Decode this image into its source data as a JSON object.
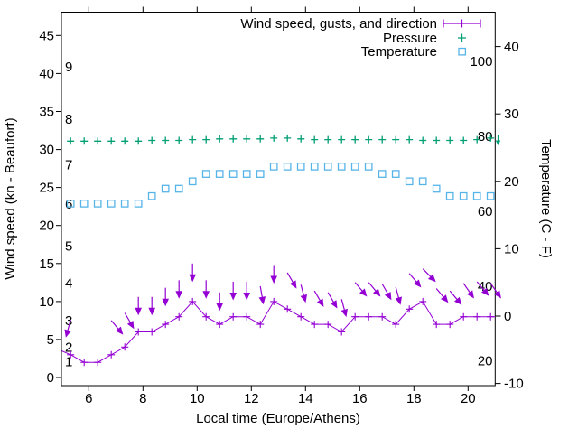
{
  "chart_data": {
    "type": "line",
    "title": "",
    "xlabel": "Local time (Europe/Athens)",
    "ylabel": "Wind speed (kn - Beaufort)",
    "y2label": "Temperature (C - F)",
    "x_range_hours": [
      5,
      21
    ],
    "x_ticks": [
      6,
      8,
      10,
      12,
      14,
      16,
      18,
      20
    ],
    "y_left_ticks_kn": [
      0,
      5,
      10,
      15,
      20,
      25,
      30,
      35,
      40,
      45
    ],
    "y_right_ticks_c": [
      -10,
      0,
      10,
      20,
      30,
      40
    ],
    "grid": false,
    "legend_position": "top-right-inside",
    "beaufort_scale_labels": [
      {
        "label": "1",
        "kn": 2.1
      },
      {
        "label": "2",
        "kn": 4.0
      },
      {
        "label": "3",
        "kn": 7.5
      },
      {
        "label": "4",
        "kn": 12.4
      },
      {
        "label": "5",
        "kn": 17.3
      },
      {
        "label": "6",
        "kn": 22.8
      },
      {
        "label": "7",
        "kn": 28.0
      },
      {
        "label": "8",
        "kn": 34.0
      },
      {
        "label": "9",
        "kn": 40.9
      }
    ],
    "fahrenheit_scale_labels": [
      {
        "label": "20",
        "f": 20
      },
      {
        "label": "40",
        "f": 40
      },
      {
        "label": "60",
        "f": 60
      },
      {
        "label": "80",
        "f": 80
      },
      {
        "label": "100",
        "f": 100
      }
    ],
    "x_hours": [
      5.33,
      5.83,
      6.33,
      6.83,
      7.33,
      7.83,
      8.33,
      8.83,
      9.33,
      9.83,
      10.33,
      10.83,
      11.33,
      11.83,
      12.33,
      12.83,
      13.33,
      13.83,
      14.33,
      14.83,
      15.33,
      15.83,
      16.33,
      16.83,
      17.33,
      17.83,
      18.33,
      18.83,
      19.33,
      19.83,
      20.33,
      20.83
    ],
    "series": {
      "wind_speed": {
        "label": "Wind speed, gusts, and direction",
        "color": "#9400d3",
        "values_kn": [
          3,
          2,
          2,
          3,
          4,
          6,
          6,
          7,
          8,
          10,
          8,
          7,
          8,
          8,
          7,
          10,
          9,
          8,
          7,
          7,
          6,
          8,
          8,
          8,
          7,
          9,
          10,
          7,
          7,
          8,
          8,
          8
        ],
        "lead_in_kn": 3.5,
        "trail_out_kn": 8
      },
      "gusts": {
        "color": "#9400d3",
        "arrows": [
          {
            "t": 5.33,
            "kn": 7.6,
            "angle": 195
          },
          {
            "t": 6.83,
            "kn": 7.5,
            "angle": 140
          },
          {
            "t": 7.33,
            "kn": 8.5,
            "angle": 150
          },
          {
            "t": 7.83,
            "kn": 10.6,
            "angle": 180
          },
          {
            "t": 8.33,
            "kn": 10.6,
            "angle": 180
          },
          {
            "t": 8.83,
            "kn": 11.8,
            "angle": 180
          },
          {
            "t": 9.33,
            "kn": 12.8,
            "angle": 180
          },
          {
            "t": 9.83,
            "kn": 15.0,
            "angle": 180
          },
          {
            "t": 10.33,
            "kn": 12.8,
            "angle": 180
          },
          {
            "t": 10.83,
            "kn": 11.2,
            "angle": 180
          },
          {
            "t": 11.33,
            "kn": 12.6,
            "angle": 180
          },
          {
            "t": 11.83,
            "kn": 12.6,
            "angle": 180
          },
          {
            "t": 12.33,
            "kn": 12.0,
            "angle": 170
          },
          {
            "t": 12.83,
            "kn": 14.8,
            "angle": 180
          },
          {
            "t": 13.33,
            "kn": 13.8,
            "angle": 150
          },
          {
            "t": 13.83,
            "kn": 12.2,
            "angle": 165
          },
          {
            "t": 14.33,
            "kn": 11.4,
            "angle": 150
          },
          {
            "t": 14.83,
            "kn": 11.2,
            "angle": 150
          },
          {
            "t": 15.33,
            "kn": 10.3,
            "angle": 165
          },
          {
            "t": 15.83,
            "kn": 12.5,
            "angle": 140
          },
          {
            "t": 16.33,
            "kn": 12.5,
            "angle": 140
          },
          {
            "t": 16.83,
            "kn": 12.3,
            "angle": 150
          },
          {
            "t": 17.33,
            "kn": 11.9,
            "angle": 165
          },
          {
            "t": 17.83,
            "kn": 13.7,
            "angle": 140
          },
          {
            "t": 18.33,
            "kn": 14.3,
            "angle": 135
          },
          {
            "t": 18.83,
            "kn": 11.7,
            "angle": 140
          },
          {
            "t": 19.33,
            "kn": 11.4,
            "angle": 140
          },
          {
            "t": 19.83,
            "kn": 12.4,
            "angle": 145
          },
          {
            "t": 20.33,
            "kn": 12.6,
            "angle": 140
          },
          {
            "t": 20.83,
            "kn": 12.4,
            "angle": 145
          }
        ]
      },
      "pressure": {
        "label": "Pressure",
        "color": "#009e73",
        "values_left_axis": [
          31.1,
          31.1,
          31.1,
          31.1,
          31.1,
          31.1,
          31.2,
          31.2,
          31.2,
          31.3,
          31.3,
          31.4,
          31.4,
          31.4,
          31.4,
          31.5,
          31.5,
          31.4,
          31.3,
          31.3,
          31.3,
          31.3,
          31.3,
          31.3,
          31.3,
          31.3,
          31.2,
          31.2,
          31.2,
          31.2,
          31.3,
          31.5
        ],
        "edge_arrow": true
      },
      "temperature": {
        "label": "Temperature",
        "color": "#56b4e9",
        "values_c": [
          16.7,
          16.7,
          16.7,
          16.7,
          16.7,
          16.7,
          17.8,
          18.9,
          18.9,
          20,
          21.1,
          21.1,
          21.1,
          21.1,
          21.1,
          22.2,
          22.2,
          22.2,
          22.2,
          22.2,
          22.2,
          22.2,
          22.2,
          21.1,
          21.1,
          20,
          20,
          18.9,
          17.8,
          17.8,
          17.8,
          17.8
        ]
      }
    }
  }
}
